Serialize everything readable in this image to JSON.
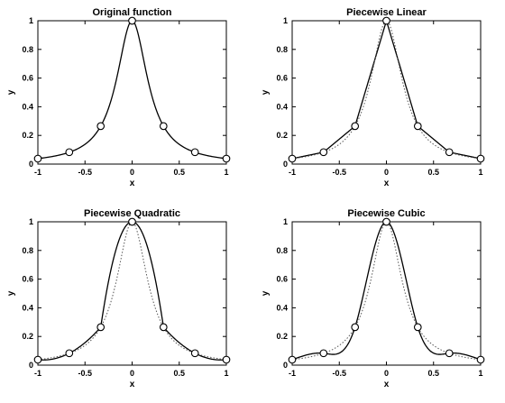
{
  "figure": {
    "background": "#ffffff",
    "line_color": "#000000",
    "dotted_color": "#555555"
  },
  "chart_data": [
    {
      "type": "line",
      "title": "Original function",
      "xlabel": "x",
      "ylabel": "y",
      "xlim": [
        -1,
        1
      ],
      "ylim": [
        0,
        1
      ],
      "xticks": [
        "-1",
        "-0.5",
        "0",
        "0.5",
        "1"
      ],
      "yticks": [
        "0",
        "0.2",
        "0.4",
        "0.6",
        "0.8",
        "1"
      ],
      "nodes": {
        "x": [
          -1,
          -0.667,
          -0.333,
          0,
          0.333,
          0.667,
          1
        ],
        "y": [
          0.038,
          0.083,
          0.265,
          1,
          0.265,
          0.083,
          0.038
        ]
      },
      "series": [
        {
          "function": "1/(1+25x^2)",
          "style": "solid"
        }
      ],
      "grid": false
    },
    {
      "type": "line",
      "title": "Piecewise Linear",
      "xlabel": "x",
      "ylabel": "y",
      "xlim": [
        -1,
        1
      ],
      "ylim": [
        0,
        1
      ],
      "xticks": [
        "-1",
        "-0.5",
        "0",
        "0.5",
        "1"
      ],
      "yticks": [
        "0",
        "0.2",
        "0.4",
        "0.6",
        "0.8",
        "1"
      ],
      "nodes": {
        "x": [
          -1,
          -0.667,
          -0.333,
          0,
          0.333,
          0.667,
          1
        ],
        "y": [
          0.038,
          0.083,
          0.265,
          1,
          0.265,
          0.083,
          0.038
        ]
      },
      "series": [
        {
          "function": "piecewise linear interpolant",
          "style": "solid"
        },
        {
          "function": "1/(1+25x^2)",
          "style": "dotted"
        }
      ],
      "grid": false
    },
    {
      "type": "line",
      "title": "Piecewise Quadratic",
      "xlabel": "x",
      "ylabel": "y",
      "xlim": [
        -1,
        1
      ],
      "ylim": [
        0,
        1
      ],
      "xticks": [
        "-1",
        "-0.5",
        "0",
        "0.5",
        "1"
      ],
      "yticks": [
        "0",
        "0.2",
        "0.4",
        "0.6",
        "0.8",
        "1"
      ],
      "nodes": {
        "x": [
          -1,
          -0.667,
          -0.333,
          0,
          0.333,
          0.667,
          1
        ],
        "y": [
          0.038,
          0.083,
          0.265,
          1,
          0.265,
          0.083,
          0.038
        ]
      },
      "series": [
        {
          "function": "piecewise quadratic interpolant",
          "style": "solid"
        },
        {
          "function": "1/(1+25x^2)",
          "style": "dotted"
        }
      ],
      "grid": false
    },
    {
      "type": "line",
      "title": "Piecewise Cubic",
      "xlabel": "x",
      "ylabel": "y",
      "xlim": [
        -1,
        1
      ],
      "ylim": [
        0,
        1
      ],
      "xticks": [
        "-1",
        "-0.5",
        "0",
        "0.5",
        "1"
      ],
      "yticks": [
        "0",
        "0.2",
        "0.4",
        "0.6",
        "0.8",
        "1"
      ],
      "nodes": {
        "x": [
          -1,
          -0.667,
          -0.333,
          0,
          0.333,
          0.667,
          1
        ],
        "y": [
          0.038,
          0.083,
          0.265,
          1,
          0.265,
          0.083,
          0.038
        ]
      },
      "series": [
        {
          "function": "piecewise cubic interpolant",
          "style": "solid"
        },
        {
          "function": "1/(1+25x^2)",
          "style": "dotted"
        }
      ],
      "grid": false
    }
  ]
}
